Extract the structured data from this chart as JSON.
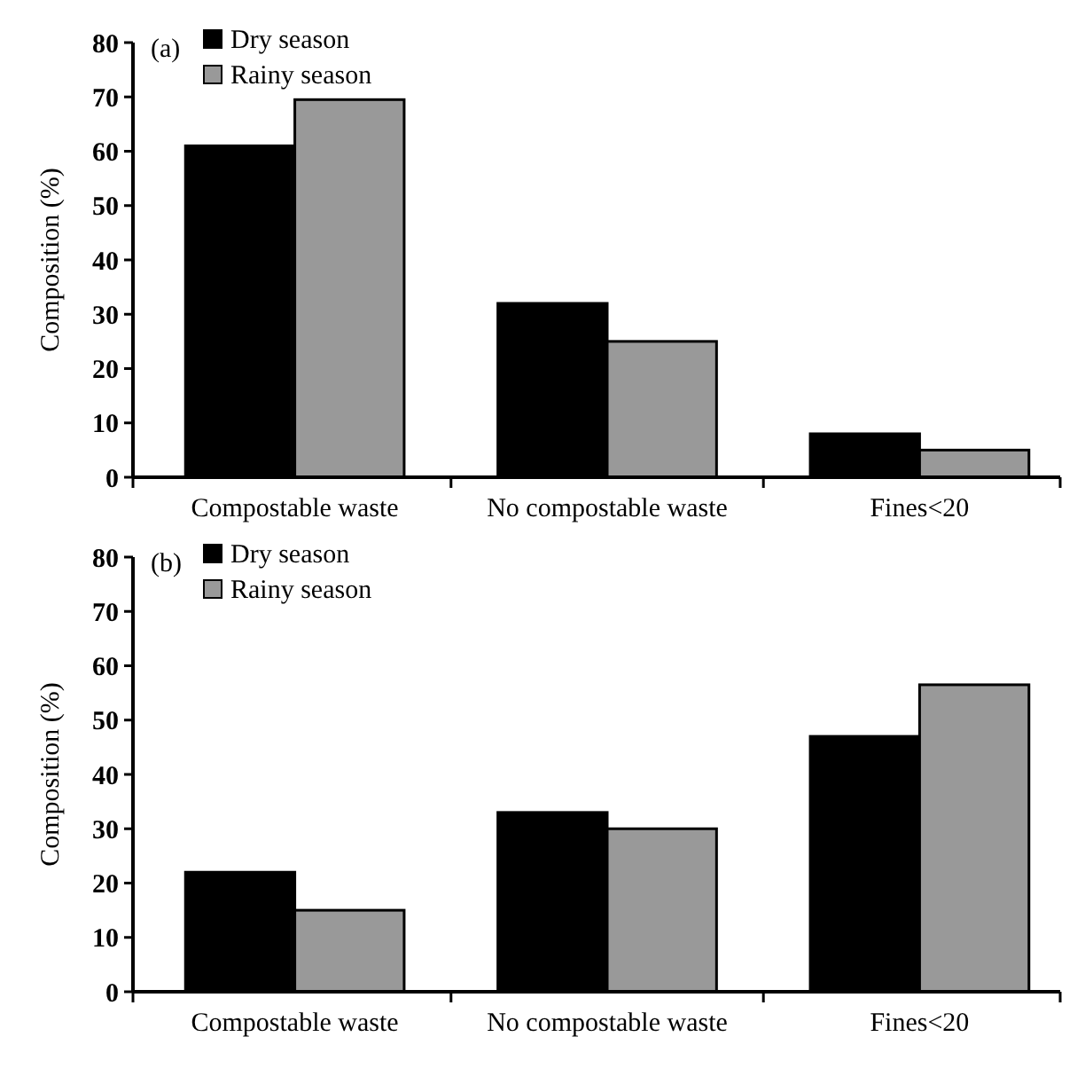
{
  "chart_data": [
    {
      "type": "bar",
      "ylabel": "Composition (%)",
      "annotations": [
        "(a)"
      ],
      "categories": [
        "Compostable waste",
        "No compostable waste",
        "Fines<20"
      ],
      "series": [
        {
          "name": "Dry season",
          "color": "#000000",
          "values": [
            61,
            32,
            8
          ]
        },
        {
          "name": "Rainy season",
          "color": "#999999",
          "values": [
            69.5,
            25,
            5
          ]
        }
      ],
      "ylim": [
        0,
        80
      ],
      "yticks": [
        0,
        10,
        20,
        30,
        40,
        50,
        60,
        70,
        80
      ],
      "grid": false,
      "legend": "top left"
    },
    {
      "type": "bar",
      "ylabel": "Composition (%)",
      "annotations": [
        "(b)"
      ],
      "categories": [
        "Compostable waste",
        "No compostable waste",
        "Fines<20"
      ],
      "series": [
        {
          "name": "Dry season",
          "color": "#000000",
          "values": [
            22,
            33,
            47
          ]
        },
        {
          "name": "Rainy season",
          "color": "#999999",
          "values": [
            15,
            30,
            56.5
          ]
        }
      ],
      "ylim": [
        0,
        80
      ],
      "yticks": [
        0,
        10,
        20,
        30,
        40,
        50,
        60,
        70,
        80
      ],
      "grid": false,
      "legend": "top left"
    }
  ]
}
